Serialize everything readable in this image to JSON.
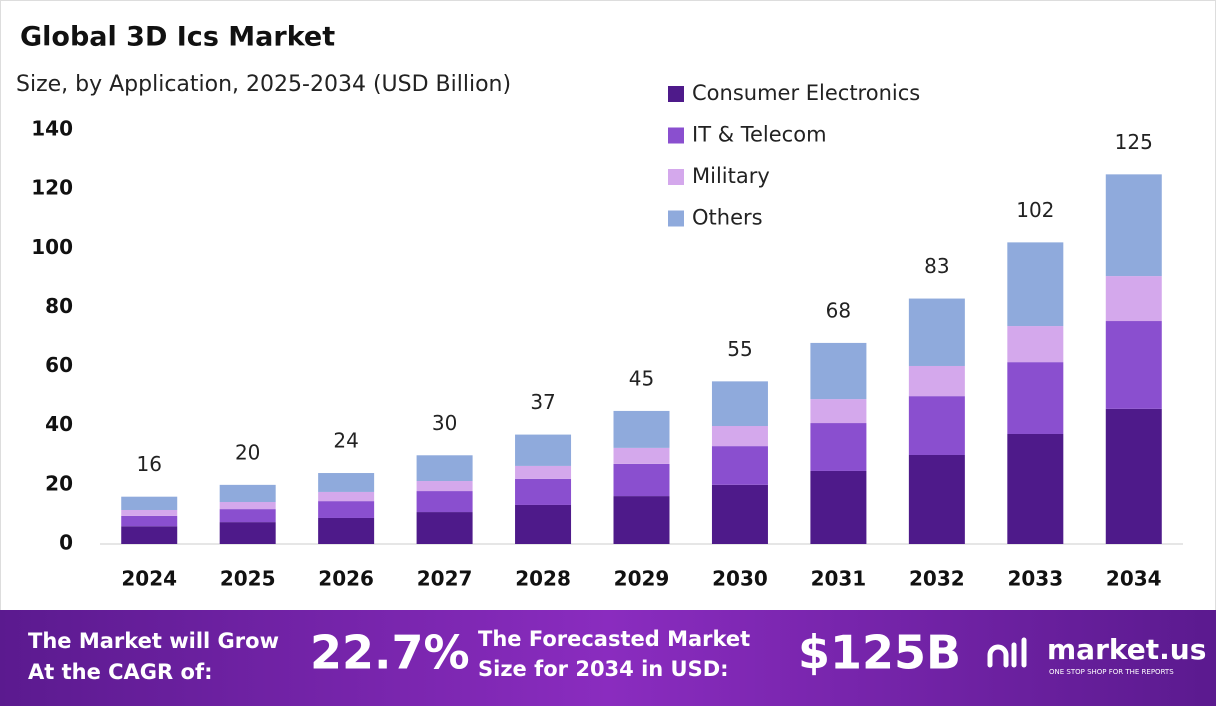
{
  "chart_data": {
    "type": "stacked-bar",
    "title": "Global 3D Ics Market",
    "subtitle": "Size, by Application, 2025-2034 (USD Billion)",
    "categories": [
      "2024",
      "2025",
      "2026",
      "2027",
      "2028",
      "2029",
      "2030",
      "2031",
      "2032",
      "2033",
      "2034"
    ],
    "series": [
      {
        "name": "Consumer Electronics",
        "color": "#4e1a8a",
        "values": [
          6,
          7.4,
          8.8,
          10.8,
          13.2,
          16.2,
          20,
          24.7,
          30.1,
          37.2,
          45.7
        ]
      },
      {
        "name": "IT & Telecom",
        "color": "#8a4fcf",
        "values": [
          3.5,
          4.4,
          5.7,
          7.1,
          8.8,
          10.9,
          13.1,
          16.2,
          19.9,
          24.3,
          29.7
        ]
      },
      {
        "name": "Military",
        "color": "#d4a8ec",
        "values": [
          2,
          2.4,
          3.1,
          3.4,
          4.4,
          5.4,
          6.8,
          8.1,
          10.2,
          12.2,
          15.2
        ]
      },
      {
        "name": "Others",
        "color": "#8faadc",
        "values": [
          4.5,
          5.8,
          6.4,
          8.7,
          10.6,
          12.5,
          15.1,
          19,
          22.8,
          28.3,
          34.4
        ]
      }
    ],
    "totals": [
      16,
      20,
      24,
      30,
      37,
      45,
      55,
      68,
      83,
      102,
      125
    ],
    "ylim": [
      0,
      140
    ],
    "yticks": [
      0,
      20,
      40,
      60,
      80,
      100,
      120,
      140
    ],
    "grid": false,
    "legend": "top-right"
  },
  "footer": {
    "cagr_text": [
      "The Market will Grow",
      "At the CAGR of:"
    ],
    "cagr_value": "22.7%",
    "forecast_text": [
      "The Forecasted Market",
      "Size for 2034 in USD:"
    ],
    "forecast_value": "$125B",
    "brand": "market.us",
    "tagline": "ONE STOP SHOP FOR THE REPORTS"
  }
}
